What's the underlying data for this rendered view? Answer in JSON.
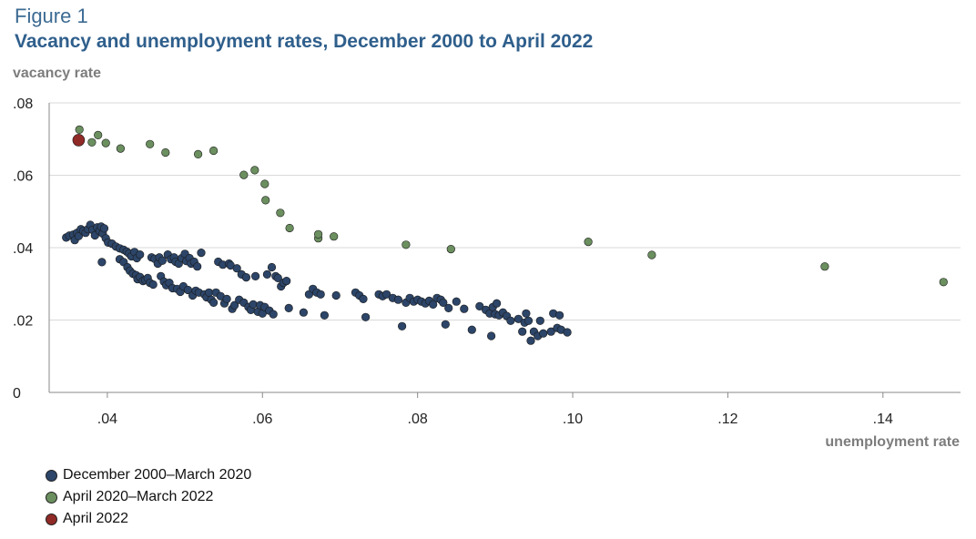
{
  "figure_label": "Figure 1",
  "chart_data": {
    "type": "scatter",
    "title": "Vacancy and unemployment rates, December 2000 to April 2022",
    "xlabel": "unemployment rate",
    "ylabel": "vacancy rate",
    "xlim": [
      0.0325,
      0.15
    ],
    "ylim": [
      0,
      0.08
    ],
    "xticks": [
      0.04,
      0.06,
      0.08,
      0.1,
      0.12,
      0.14
    ],
    "xtick_labels": [
      ".04",
      ".06",
      ".08",
      ".10",
      ".12",
      ".14"
    ],
    "yticks": [
      0,
      0.02,
      0.04,
      0.06,
      0.08
    ],
    "ytick_labels": [
      "0",
      ".02",
      ".04",
      ".06",
      ".08"
    ],
    "grid": "horizontal",
    "series": [
      {
        "name": "December 2000–March 2020",
        "color": "#2c4568",
        "points": [
          [
            0.0347,
            0.0428
          ],
          [
            0.0351,
            0.0433
          ],
          [
            0.0356,
            0.0436
          ],
          [
            0.0358,
            0.0421
          ],
          [
            0.0361,
            0.0441
          ],
          [
            0.0363,
            0.0432
          ],
          [
            0.0366,
            0.0451
          ],
          [
            0.0369,
            0.0446
          ],
          [
            0.0372,
            0.0441
          ],
          [
            0.0375,
            0.0451
          ],
          [
            0.0378,
            0.0463
          ],
          [
            0.0381,
            0.0449
          ],
          [
            0.0384,
            0.0434
          ],
          [
            0.0387,
            0.0456
          ],
          [
            0.039,
            0.0446
          ],
          [
            0.0392,
            0.0458
          ],
          [
            0.0394,
            0.0439
          ],
          [
            0.0396,
            0.0453
          ],
          [
            0.0398,
            0.0426
          ],
          [
            0.0401,
            0.0414
          ],
          [
            0.0406,
            0.0411
          ],
          [
            0.0411,
            0.0403
          ],
          [
            0.0416,
            0.0398
          ],
          [
            0.0421,
            0.0394
          ],
          [
            0.0425,
            0.0389
          ],
          [
            0.0428,
            0.0384
          ],
          [
            0.0431,
            0.0376
          ],
          [
            0.0435,
            0.0388
          ],
          [
            0.0438,
            0.0371
          ],
          [
            0.0442,
            0.0381
          ],
          [
            0.0393,
            0.036
          ],
          [
            0.0416,
            0.0368
          ],
          [
            0.0421,
            0.036
          ],
          [
            0.0426,
            0.0346
          ],
          [
            0.0429,
            0.0336
          ],
          [
            0.0433,
            0.0328
          ],
          [
            0.0437,
            0.0324
          ],
          [
            0.0439,
            0.0313
          ],
          [
            0.0442,
            0.0319
          ],
          [
            0.0446,
            0.0308
          ],
          [
            0.0449,
            0.0311
          ],
          [
            0.0452,
            0.0316
          ],
          [
            0.0455,
            0.0303
          ],
          [
            0.0457,
            0.0373
          ],
          [
            0.0459,
            0.0298
          ],
          [
            0.0461,
            0.0369
          ],
          [
            0.0465,
            0.0356
          ],
          [
            0.0467,
            0.0373
          ],
          [
            0.0469,
            0.0321
          ],
          [
            0.0471,
            0.0364
          ],
          [
            0.0473,
            0.0306
          ],
          [
            0.0476,
            0.0296
          ],
          [
            0.0478,
            0.0381
          ],
          [
            0.048,
            0.0303
          ],
          [
            0.0482,
            0.0368
          ],
          [
            0.0484,
            0.0288
          ],
          [
            0.0486,
            0.0373
          ],
          [
            0.0488,
            0.0361
          ],
          [
            0.049,
            0.0286
          ],
          [
            0.0492,
            0.0356
          ],
          [
            0.0494,
            0.0278
          ],
          [
            0.0496,
            0.0371
          ],
          [
            0.0498,
            0.0293
          ],
          [
            0.05,
            0.0383
          ],
          [
            0.0502,
            0.0363
          ],
          [
            0.0504,
            0.0283
          ],
          [
            0.0506,
            0.0371
          ],
          [
            0.0508,
            0.0356
          ],
          [
            0.051,
            0.0268
          ],
          [
            0.0512,
            0.0361
          ],
          [
            0.0514,
            0.0281
          ],
          [
            0.0516,
            0.0348
          ],
          [
            0.0518,
            0.0276
          ],
          [
            0.0521,
            0.0386
          ],
          [
            0.0525,
            0.0271
          ],
          [
            0.0528,
            0.0263
          ],
          [
            0.0531,
            0.0276
          ],
          [
            0.0534,
            0.0256
          ],
          [
            0.0537,
            0.0248
          ],
          [
            0.054,
            0.0276
          ],
          [
            0.0543,
            0.0361
          ],
          [
            0.0546,
            0.0266
          ],
          [
            0.0549,
            0.0353
          ],
          [
            0.0551,
            0.0246
          ],
          [
            0.0554,
            0.0258
          ],
          [
            0.0557,
            0.0356
          ],
          [
            0.0559,
            0.0351
          ],
          [
            0.0561,
            0.0231
          ],
          [
            0.0564,
            0.0241
          ],
          [
            0.0567,
            0.0343
          ],
          [
            0.057,
            0.0256
          ],
          [
            0.0573,
            0.0326
          ],
          [
            0.0576,
            0.0248
          ],
          [
            0.0579,
            0.0318
          ],
          [
            0.0582,
            0.0236
          ],
          [
            0.0585,
            0.0228
          ],
          [
            0.0588,
            0.0243
          ],
          [
            0.0591,
            0.0321
          ],
          [
            0.0594,
            0.0223
          ],
          [
            0.0597,
            0.0241
          ],
          [
            0.06,
            0.0218
          ],
          [
            0.0603,
            0.0236
          ],
          [
            0.0606,
            0.0326
          ],
          [
            0.0609,
            0.0226
          ],
          [
            0.0612,
            0.0346
          ],
          [
            0.0614,
            0.0216
          ],
          [
            0.0617,
            0.0321
          ],
          [
            0.062,
            0.0316
          ],
          [
            0.0624,
            0.0293
          ],
          [
            0.0627,
            0.0303
          ],
          [
            0.0631,
            0.0308
          ],
          [
            0.0634,
            0.0233
          ],
          [
            0.0653,
            0.0221
          ],
          [
            0.066,
            0.0271
          ],
          [
            0.0665,
            0.0286
          ],
          [
            0.067,
            0.0276
          ],
          [
            0.0675,
            0.0271
          ],
          [
            0.068,
            0.0213
          ],
          [
            0.0695,
            0.0268
          ],
          [
            0.072,
            0.0276
          ],
          [
            0.0725,
            0.0268
          ],
          [
            0.073,
            0.0258
          ],
          [
            0.0733,
            0.0208
          ],
          [
            0.075,
            0.0271
          ],
          [
            0.0755,
            0.0266
          ],
          [
            0.076,
            0.0271
          ],
          [
            0.0768,
            0.0261
          ],
          [
            0.0775,
            0.0256
          ],
          [
            0.078,
            0.0183
          ],
          [
            0.0785,
            0.0248
          ],
          [
            0.079,
            0.0261
          ],
          [
            0.0795,
            0.0251
          ],
          [
            0.08,
            0.0256
          ],
          [
            0.0805,
            0.0251
          ],
          [
            0.081,
            0.0246
          ],
          [
            0.0815,
            0.0253
          ],
          [
            0.082,
            0.0243
          ],
          [
            0.0825,
            0.0261
          ],
          [
            0.083,
            0.0256
          ],
          [
            0.0833,
            0.0248
          ],
          [
            0.0836,
            0.0188
          ],
          [
            0.084,
            0.0233
          ],
          [
            0.085,
            0.0251
          ],
          [
            0.086,
            0.0231
          ],
          [
            0.087,
            0.0173
          ],
          [
            0.088,
            0.0238
          ],
          [
            0.0888,
            0.0228
          ],
          [
            0.0893,
            0.0218
          ],
          [
            0.0895,
            0.0156
          ],
          [
            0.0897,
            0.0236
          ],
          [
            0.09,
            0.0216
          ],
          [
            0.0902,
            0.0246
          ],
          [
            0.0905,
            0.0213
          ],
          [
            0.091,
            0.0221
          ],
          [
            0.0915,
            0.0211
          ],
          [
            0.092,
            0.0198
          ],
          [
            0.093,
            0.0203
          ],
          [
            0.0935,
            0.0168
          ],
          [
            0.0938,
            0.0193
          ],
          [
            0.094,
            0.0218
          ],
          [
            0.0943,
            0.0198
          ],
          [
            0.0946,
            0.0143
          ],
          [
            0.095,
            0.0168
          ],
          [
            0.0955,
            0.0156
          ],
          [
            0.0958,
            0.0198
          ],
          [
            0.0962,
            0.0163
          ],
          [
            0.0972,
            0.0168
          ],
          [
            0.0975,
            0.0218
          ],
          [
            0.098,
            0.0178
          ],
          [
            0.0983,
            0.0213
          ],
          [
            0.0985,
            0.0173
          ],
          [
            0.0993,
            0.0166
          ]
        ]
      },
      {
        "name": "April 2020–March 2022",
        "color": "#6b8f5f",
        "points": [
          [
            0.0364,
            0.0726
          ],
          [
            0.038,
            0.0691
          ],
          [
            0.0388,
            0.0711
          ],
          [
            0.0398,
            0.0689
          ],
          [
            0.0417,
            0.0674
          ],
          [
            0.0455,
            0.0686
          ],
          [
            0.0475,
            0.0663
          ],
          [
            0.0517,
            0.0658
          ],
          [
            0.0537,
            0.0668
          ],
          [
            0.0576,
            0.0601
          ],
          [
            0.059,
            0.0614
          ],
          [
            0.0603,
            0.0576
          ],
          [
            0.0604,
            0.0531
          ],
          [
            0.0623,
            0.0496
          ],
          [
            0.0635,
            0.0454
          ],
          [
            0.0672,
            0.0426
          ],
          [
            0.0672,
            0.0437
          ],
          [
            0.0692,
            0.0431
          ],
          [
            0.0785,
            0.0408
          ],
          [
            0.0843,
            0.0396
          ],
          [
            0.102,
            0.0416
          ],
          [
            0.1102,
            0.038
          ],
          [
            0.1325,
            0.0348
          ],
          [
            0.1478,
            0.0305
          ]
        ]
      },
      {
        "name": "April 2022",
        "color": "#8f2a26",
        "points": [
          [
            0.0363,
            0.0697
          ]
        ]
      }
    ]
  }
}
